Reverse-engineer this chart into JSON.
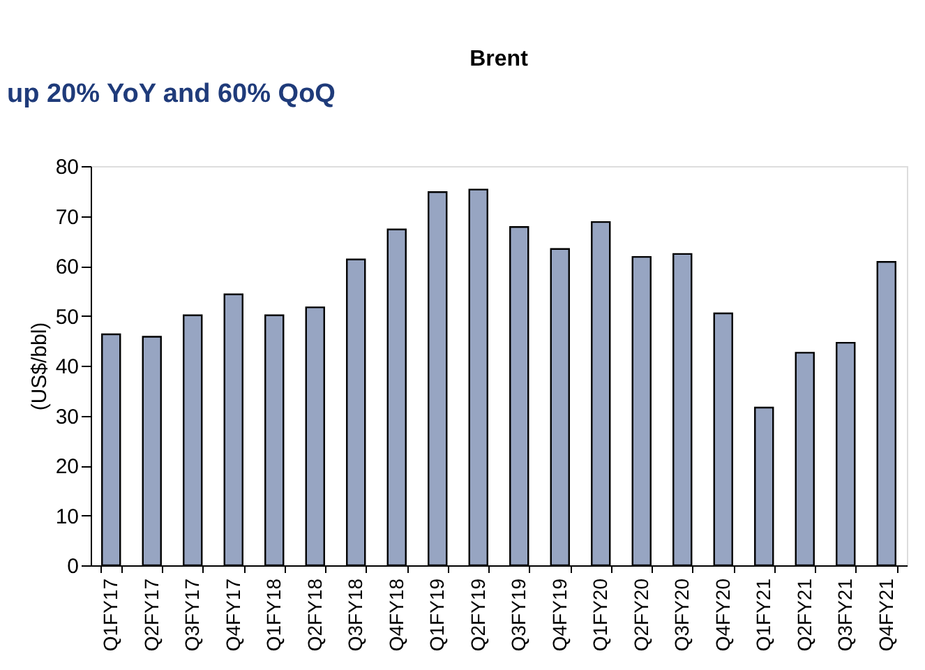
{
  "chart_data": {
    "type": "bar",
    "title": "Brent",
    "ylabel": "(US$/bbl)",
    "annotations": [
      "up 20% YoY and 60% QoQ"
    ],
    "categories": [
      "Q1FY17",
      "Q2FY17",
      "Q3FY17",
      "Q4FY17",
      "Q1FY18",
      "Q2FY18",
      "Q3FY18",
      "Q4FY18",
      "Q1FY19",
      "Q2FY19",
      "Q3FY19",
      "Q4FY19",
      "Q1FY20",
      "Q2FY20",
      "Q3FY20",
      "Q4FY20",
      "Q1FY21",
      "Q2FY21",
      "Q3FY21",
      "Q4FY21"
    ],
    "values": [
      46.3,
      45.8,
      50.1,
      54.3,
      50.1,
      51.7,
      61.3,
      67.3,
      74.8,
      75.3,
      67.8,
      63.4,
      68.8,
      61.8,
      62.4,
      50.5,
      31.6,
      42.6,
      44.6,
      60.8
    ],
    "color": "#97a5c2",
    "ylim": [
      0,
      80
    ],
    "yticks": [
      0,
      10,
      20,
      30,
      40,
      50,
      60,
      70,
      80
    ],
    "grid": false
  }
}
